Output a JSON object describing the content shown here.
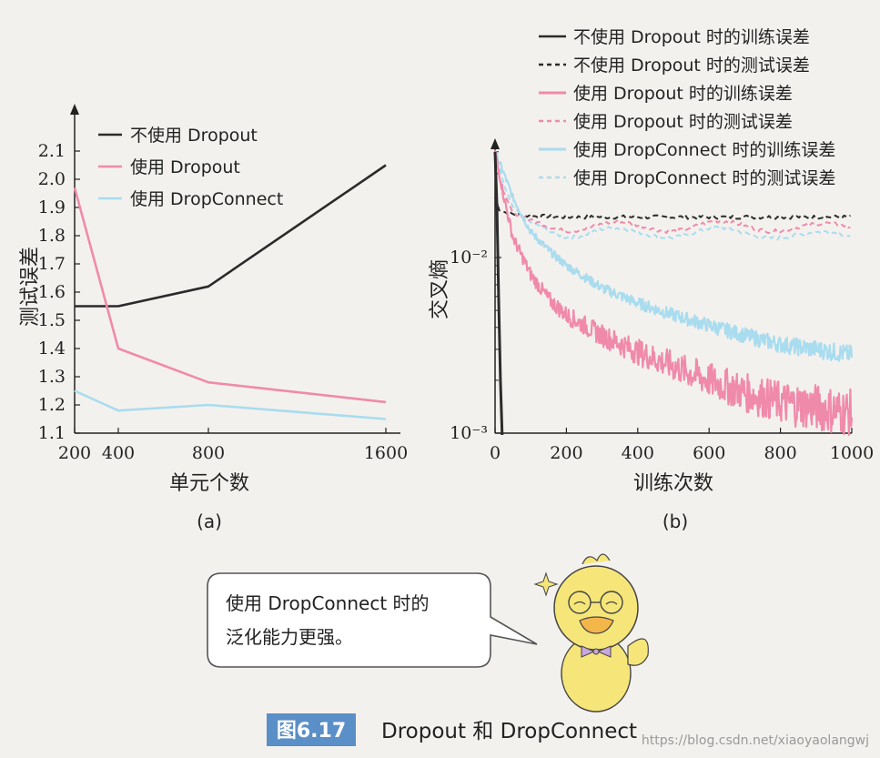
{
  "chart_data": [
    {
      "type": "line",
      "sublabel": "(a)",
      "xlabel": "单元个数",
      "ylabel": "测试误差",
      "xticks": [
        "200",
        "400",
        "800",
        "1600"
      ],
      "yticks": [
        "1.1",
        "1.2",
        "1.3",
        "1.4",
        "1.5",
        "1.6",
        "1.7",
        "1.8",
        "1.9",
        "2.0",
        "2.1"
      ],
      "xlim": [
        200,
        1600
      ],
      "ylim": [
        1.1,
        2.2
      ],
      "legend_position": "top-left",
      "series": [
        {
          "name": "不使用 Dropout",
          "color": "#2b2b2b",
          "x": [
            200,
            400,
            800,
            1600
          ],
          "y": [
            1.55,
            1.55,
            1.62,
            2.05
          ]
        },
        {
          "name": "使用 Dropout",
          "color": "#f08aab",
          "x": [
            200,
            400,
            800,
            1600
          ],
          "y": [
            1.97,
            1.4,
            1.28,
            1.21
          ]
        },
        {
          "name": "使用 DropConnect",
          "color": "#a9dcef",
          "x": [
            200,
            400,
            800,
            1600
          ],
          "y": [
            1.25,
            1.18,
            1.2,
            1.15
          ]
        }
      ]
    },
    {
      "type": "line",
      "sublabel": "(b)",
      "xlabel": "训练次数",
      "ylabel": "交叉熵",
      "yscale": "log",
      "xticks": [
        "0",
        "200",
        "400",
        "600",
        "800",
        "1000"
      ],
      "yticks": [
        "10⁻²",
        "10⁻³"
      ],
      "xlim": [
        0,
        1000
      ],
      "ylim": [
        0.001,
        0.045
      ],
      "legend_position": "top-right",
      "series": [
        {
          "name": "不使用 Dropout 时的训练误差",
          "color": "#2b2b2b",
          "dash": "solid",
          "x": [
            0,
            5,
            10,
            15,
            20
          ],
          "y": [
            0.04,
            0.02,
            0.006,
            0.002,
            0.0009
          ]
        },
        {
          "name": "不使用 Dropout 时的测试误差",
          "color": "#2b2b2b",
          "dash": "dashed",
          "x": [
            0,
            10,
            30,
            60,
            100,
            200,
            400,
            600,
            800,
            1000
          ],
          "y": [
            0.022,
            0.019,
            0.018,
            0.0175,
            0.0172,
            0.017,
            0.017,
            0.017,
            0.017,
            0.017
          ]
        },
        {
          "name": "使用 Dropout 时的训练误差",
          "color": "#f08aab",
          "dash": "solid",
          "x": [
            0,
            25,
            50,
            100,
            150,
            200,
            300,
            400,
            500,
            600,
            700,
            800,
            900,
            1000
          ],
          "y": [
            0.04,
            0.022,
            0.013,
            0.008,
            0.0058,
            0.0047,
            0.0036,
            0.0029,
            0.0024,
            0.002,
            0.0017,
            0.0015,
            0.0014,
            0.0013
          ]
        },
        {
          "name": "使用 Dropout 时的测试误差",
          "color": "#f08aab",
          "dash": "dashed",
          "x": [
            0,
            25,
            50,
            100,
            200,
            300,
            400,
            500,
            600,
            700,
            800,
            900,
            1000
          ],
          "y": [
            0.038,
            0.022,
            0.017,
            0.0155,
            0.015,
            0.0152,
            0.0148,
            0.015,
            0.0153,
            0.015,
            0.015,
            0.0147,
            0.015
          ]
        },
        {
          "name": "使用 DropConnect 时的训练误差",
          "color": "#a9dcef",
          "dash": "solid",
          "x": [
            0,
            25,
            50,
            100,
            150,
            200,
            300,
            400,
            500,
            600,
            700,
            800,
            900,
            1000
          ],
          "y": [
            0.04,
            0.03,
            0.022,
            0.014,
            0.011,
            0.009,
            0.0067,
            0.0055,
            0.0047,
            0.0041,
            0.0036,
            0.0032,
            0.003,
            0.0028
          ]
        },
        {
          "name": "使用 DropConnect 时的测试误差",
          "color": "#a9dcef",
          "dash": "dashed",
          "x": [
            0,
            25,
            50,
            100,
            200,
            300,
            400,
            500,
            600,
            700,
            800,
            900,
            1000
          ],
          "y": [
            0.04,
            0.025,
            0.018,
            0.015,
            0.0138,
            0.0142,
            0.0135,
            0.0138,
            0.0141,
            0.0136,
            0.0137,
            0.0132,
            0.0133
          ]
        }
      ]
    }
  ],
  "bubble": {
    "line1": "使用 DropConnect 时的",
    "line2": "泛化能力更强。"
  },
  "caption": {
    "badge": "图6.17",
    "title": "Dropout 和 DropConnect"
  },
  "watermark": "https://blog.csdn.net/xiaoyaolangwj",
  "colors": {
    "caption_badge": "#5b8fc7",
    "bubble_border": "#555555",
    "duck_body": "#f6e67a",
    "duck_beak": "#f3b64a",
    "bow_tie": "#c9a7dc"
  }
}
